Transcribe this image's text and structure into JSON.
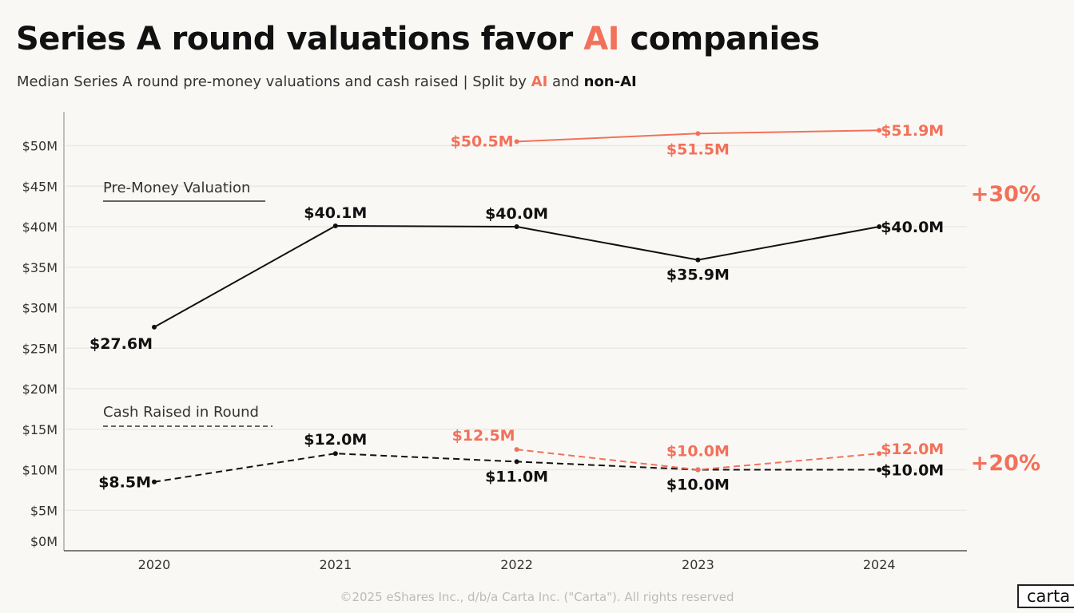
{
  "title": {
    "prefix": "Series A round valuations favor ",
    "highlight": "AI",
    "suffix": " companies"
  },
  "subtitle": {
    "text": "Median Series A round pre-money valuations and cash raised | Split by ",
    "ai": "AI",
    "and": " and ",
    "nonai": "non-AI"
  },
  "footer": "©2025 eShares Inc., d/b/a Carta Inc. (\"Carta\"). All rights reserved",
  "logo": "carta",
  "colors": {
    "ai": "#f2715a",
    "non_ai": "#111111",
    "grid": "#ece9e4",
    "background": "#faf8f5"
  },
  "chart_data": {
    "type": "line",
    "title": "Series A round valuations favor AI companies",
    "x": [
      "2020",
      "2021",
      "2022",
      "2023",
      "2024"
    ],
    "ylim": [
      0,
      50
    ],
    "yticks": [
      "$0M",
      "$5M",
      "$10M",
      "$15M",
      "$20M",
      "$25M",
      "$30M",
      "$35M",
      "$40M",
      "$45M",
      "$50M"
    ],
    "grid": true,
    "series": [
      {
        "key": "val_nonai",
        "group": "Pre-Money Valuation",
        "segment": "non-AI",
        "style": "solid",
        "color": "#111111",
        "values": [
          27.6,
          40.1,
          40.0,
          35.9,
          40.0
        ],
        "labels": [
          "$27.6M",
          "$40.1M",
          "$40.0M",
          "$35.9M",
          "$40.0M"
        ]
      },
      {
        "key": "val_ai",
        "group": "Pre-Money Valuation",
        "segment": "AI",
        "style": "solid",
        "color": "#f2715a",
        "values": [
          null,
          null,
          50.5,
          51.5,
          51.9
        ],
        "labels": [
          null,
          null,
          "$50.5M",
          "$51.5M",
          "$51.9M"
        ]
      },
      {
        "key": "cash_nonai",
        "group": "Cash Raised in Round",
        "segment": "non-AI",
        "style": "dashed",
        "color": "#111111",
        "values": [
          8.5,
          12.0,
          11.0,
          10.0,
          10.0
        ],
        "labels": [
          "$8.5M",
          "$12.0M",
          "$11.0M",
          "$10.0M",
          "$10.0M"
        ]
      },
      {
        "key": "cash_ai",
        "group": "Cash Raised in Round",
        "segment": "AI",
        "style": "dashed",
        "color": "#f2715a",
        "values": [
          null,
          null,
          12.5,
          10.0,
          12.0
        ],
        "labels": [
          null,
          null,
          "$12.5M",
          "$10.0M",
          "$12.0M"
        ]
      }
    ],
    "legend": [
      {
        "label": "Pre-Money Valuation",
        "style": "solid"
      },
      {
        "label": "Cash Raised in Round",
        "style": "dashed"
      }
    ],
    "annotations": [
      {
        "text": "+30%",
        "refers_to": "Pre-Money Valuation"
      },
      {
        "text": "+20%",
        "refers_to": "Cash Raised in Round"
      }
    ]
  }
}
